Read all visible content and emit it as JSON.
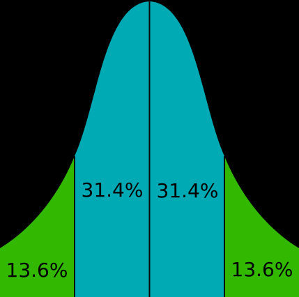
{
  "bell_curve": {
    "background_color": "#000000",
    "center_color": "#00aab5",
    "tail_color": "#33b800",
    "divider_color": "#0a0a0a",
    "regions": [
      {
        "label": "13.6%",
        "color": "#33b800",
        "side": "left-outer"
      },
      {
        "label": "31.4%",
        "color": "#00aab5",
        "side": "left-inner"
      },
      {
        "label": "31.4%",
        "color": "#00aab5",
        "side": "right-inner"
      },
      {
        "label": "13.6%",
        "color": "#33b800",
        "side": "right-outer"
      }
    ]
  }
}
